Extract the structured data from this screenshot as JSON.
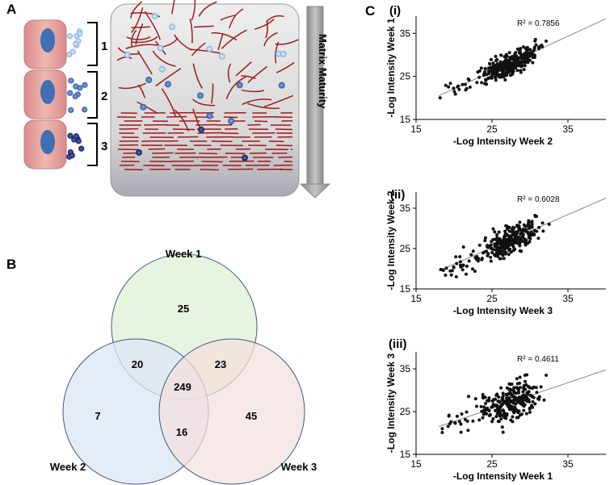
{
  "panels": {
    "a": "A",
    "b": "B",
    "c": "C"
  },
  "matrix": {
    "stage_labels": [
      "1",
      "2",
      "3"
    ],
    "arrow_label": "Matrix Maturity",
    "colors": {
      "cell": "#e8a0a0",
      "nucleus": "#3f6fb5",
      "fiber": "#9b1c1c",
      "vesicle_light": "#9ec8ec",
      "vesicle_mid": "#3d6fb8",
      "vesicle_dark": "#1a2e78"
    }
  },
  "venn": {
    "sets": [
      "Week 1",
      "Week 2",
      "Week 3"
    ],
    "regions": {
      "week1_only": "25",
      "week2_only": "7",
      "week3_only": "45",
      "week1_week2": "20",
      "week1_week3": "23",
      "week2_week3": "16",
      "all_three": "249"
    },
    "colors": {
      "week1": "#e3f2d9",
      "week2": "#dde6f4",
      "week3": "#f3e0dd",
      "stroke": "#3e5a86"
    }
  },
  "chart_data": [
    {
      "type": "scatter",
      "sublabel": "(i)",
      "xlabel": "-Log Intensity Week 2",
      "ylabel": "-Log Intensity Week 1",
      "xlim": [
        15,
        40
      ],
      "ylim": [
        15,
        39
      ],
      "xticks": [
        "15",
        "25",
        "35"
      ],
      "yticks": [
        "15",
        "25",
        "35"
      ],
      "r2_label": "R² = 0.7856",
      "r2": 0.7856,
      "trendline": {
        "x": [
          18,
          40
        ],
        "y": [
          20.5,
          38.4
        ]
      },
      "points_note": "~300 points clustered along trendline, spread approx proportional to 1-R²"
    },
    {
      "type": "scatter",
      "sublabel": "(ii)",
      "xlabel": "-Log Intensity Week 3",
      "ylabel": "-Log Intensity Week 2",
      "xlim": [
        15,
        40
      ],
      "ylim": [
        15,
        39
      ],
      "xticks": [
        "15",
        "25",
        "35"
      ],
      "yticks": [
        "15",
        "25",
        "35"
      ],
      "r2_label": "R² = 0.6028",
      "r2": 0.6028,
      "trendline": {
        "x": [
          18,
          40
        ],
        "y": [
          19.5,
          37.5
        ]
      },
      "points_note": "~300 points"
    },
    {
      "type": "scatter",
      "sublabel": "(iii)",
      "xlabel": "-Log Intensity Week 1",
      "ylabel": "-Log Intensity Week 3",
      "xlim": [
        15,
        40
      ],
      "ylim": [
        15,
        39
      ],
      "xticks": [
        "15",
        "25",
        "35"
      ],
      "yticks": [
        "15",
        "25",
        "35"
      ],
      "r2_label": "R² = 0.4611",
      "r2": 0.4611,
      "trendline": {
        "x": [
          18,
          40
        ],
        "y": [
          21.5,
          34.8
        ]
      },
      "points_note": "~300 points"
    }
  ]
}
